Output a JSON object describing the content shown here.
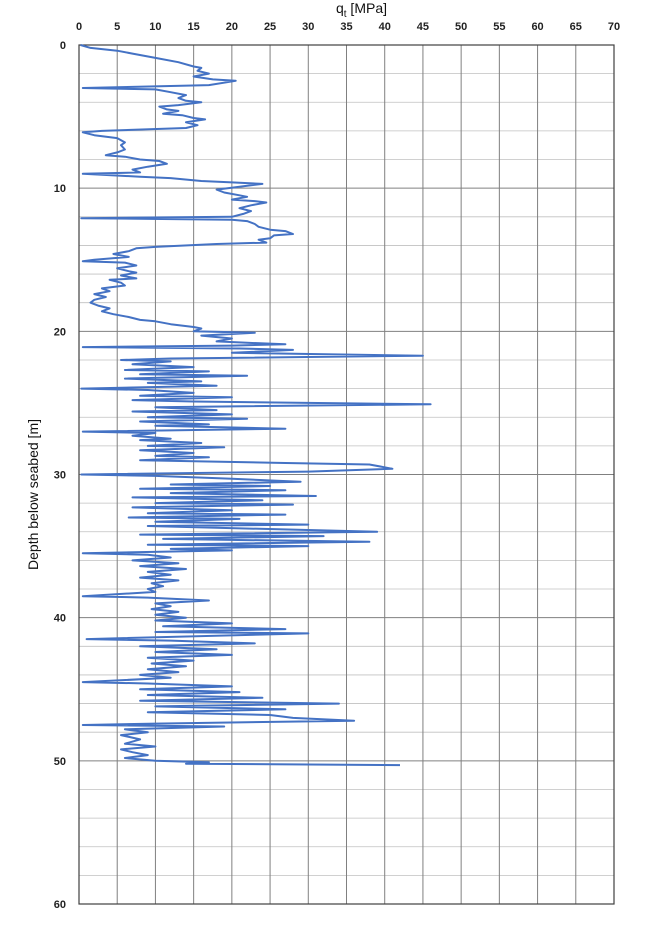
{
  "chart_data": {
    "type": "line",
    "xlabel_main": "q",
    "xlabel_sub": "t",
    "xlabel_unit": " [MPa]",
    "ylabel": "Depth below seabed [m]",
    "xlim": [
      0,
      70
    ],
    "ylim": [
      0,
      60
    ],
    "x_ticks": [
      "0",
      "5",
      "10",
      "15",
      "20",
      "25",
      "30",
      "35",
      "40",
      "45",
      "50",
      "55",
      "60",
      "65",
      "70"
    ],
    "y_ticks": [
      "0",
      "10",
      "20",
      "30",
      "40",
      "50",
      "60"
    ],
    "x_axis_position": "top",
    "y_axis_inverted": true,
    "grid": true,
    "line_color": "#4472c4",
    "series": [
      {
        "points": [
          [
            0.2,
            0.0
          ],
          [
            1.5,
            0.2
          ],
          [
            5,
            0.4
          ],
          [
            7,
            0.6
          ],
          [
            10,
            0.9
          ],
          [
            13,
            1.2
          ],
          [
            15,
            1.5
          ],
          [
            16,
            1.6
          ],
          [
            15.5,
            1.8
          ],
          [
            17,
            2.0
          ],
          [
            15,
            2.2
          ],
          [
            17.5,
            2.4
          ],
          [
            20.5,
            2.5
          ],
          [
            17,
            2.8
          ],
          [
            0.5,
            3.0
          ],
          [
            10,
            3.1
          ],
          [
            12,
            3.3
          ],
          [
            14,
            3.5
          ],
          [
            13,
            3.7
          ],
          [
            14,
            3.9
          ],
          [
            16,
            4.0
          ],
          [
            13,
            4.2
          ],
          [
            10.5,
            4.3
          ],
          [
            11.5,
            4.5
          ],
          [
            13,
            4.6
          ],
          [
            11,
            4.8
          ],
          [
            13.5,
            4.9
          ],
          [
            15,
            5.1
          ],
          [
            16.5,
            5.2
          ],
          [
            14,
            5.4
          ],
          [
            15.5,
            5.6
          ],
          [
            14,
            5.8
          ],
          [
            3,
            6.0
          ],
          [
            0.5,
            6.1
          ],
          [
            2,
            6.3
          ],
          [
            5,
            6.5
          ],
          [
            6,
            6.8
          ],
          [
            5.5,
            7.0
          ],
          [
            6,
            7.3
          ],
          [
            5,
            7.5
          ],
          [
            3.5,
            7.7
          ],
          [
            6,
            7.8
          ],
          [
            8,
            8.0
          ],
          [
            10.5,
            8.1
          ],
          [
            11.5,
            8.3
          ],
          [
            9,
            8.5
          ],
          [
            7,
            8.7
          ],
          [
            8,
            8.9
          ],
          [
            0.5,
            9.0
          ],
          [
            8,
            9.2
          ],
          [
            12,
            9.3
          ],
          [
            16,
            9.5
          ],
          [
            20,
            9.6
          ],
          [
            24,
            9.7
          ],
          [
            21,
            9.9
          ],
          [
            18,
            10.1
          ],
          [
            19,
            10.3
          ],
          [
            21,
            10.5
          ],
          [
            22,
            10.6
          ],
          [
            20,
            10.8
          ],
          [
            23,
            10.9
          ],
          [
            24.5,
            11.0
          ],
          [
            22.5,
            11.2
          ],
          [
            21,
            11.4
          ],
          [
            22.5,
            11.6
          ],
          [
            21.5,
            11.8
          ],
          [
            20,
            12.0
          ],
          [
            0.3,
            12.1
          ],
          [
            20,
            12.2
          ],
          [
            22,
            12.3
          ],
          [
            23,
            12.5
          ],
          [
            23.5,
            12.7
          ],
          [
            25,
            12.9
          ],
          [
            27,
            13.0
          ],
          [
            28,
            13.2
          ],
          [
            25.5,
            13.3
          ],
          [
            25,
            13.5
          ],
          [
            23.5,
            13.6
          ],
          [
            24.5,
            13.8
          ],
          [
            18,
            13.9
          ],
          [
            10,
            14.1
          ],
          [
            7.5,
            14.2
          ],
          [
            6.5,
            14.4
          ],
          [
            4.5,
            14.6
          ],
          [
            6.5,
            14.8
          ],
          [
            2,
            15.0
          ],
          [
            0.5,
            15.1
          ],
          [
            6,
            15.2
          ],
          [
            7.5,
            15.4
          ],
          [
            5,
            15.6
          ],
          [
            6.5,
            15.8
          ],
          [
            7.5,
            15.9
          ],
          [
            5.5,
            16.1
          ],
          [
            7.5,
            16.3
          ],
          [
            4,
            16.4
          ],
          [
            5.5,
            16.6
          ],
          [
            6,
            16.8
          ],
          [
            3,
            17.0
          ],
          [
            4,
            17.2
          ],
          [
            2,
            17.4
          ],
          [
            3.5,
            17.6
          ],
          [
            2,
            17.8
          ],
          [
            1.5,
            18.0
          ],
          [
            2.5,
            18.2
          ],
          [
            4,
            18.4
          ],
          [
            3,
            18.6
          ],
          [
            4.5,
            18.8
          ],
          [
            6.5,
            19.0
          ],
          [
            8,
            19.2
          ],
          [
            10,
            19.3
          ],
          [
            12,
            19.5
          ],
          [
            15,
            19.7
          ],
          [
            16,
            19.8
          ],
          [
            15,
            20.0
          ],
          [
            23,
            20.1
          ],
          [
            16,
            20.3
          ],
          [
            20,
            20.5
          ],
          [
            18,
            20.7
          ],
          [
            22,
            20.8
          ],
          [
            27,
            20.9
          ],
          [
            20,
            21.0
          ],
          [
            0.5,
            21.1
          ],
          [
            21,
            21.2
          ],
          [
            28,
            21.3
          ],
          [
            20,
            21.5
          ],
          [
            45,
            21.7
          ],
          [
            12,
            21.9
          ],
          [
            5.5,
            22.0
          ],
          [
            12,
            22.1
          ],
          [
            7,
            22.3
          ],
          [
            15,
            22.5
          ],
          [
            6,
            22.7
          ],
          [
            17,
            22.8
          ],
          [
            8,
            23.0
          ],
          [
            22,
            23.1
          ],
          [
            6,
            23.3
          ],
          [
            16,
            23.5
          ],
          [
            9,
            23.6
          ],
          [
            18,
            23.8
          ],
          [
            0.3,
            24.0
          ],
          [
            9,
            24.1
          ],
          [
            15,
            24.3
          ],
          [
            8,
            24.5
          ],
          [
            20,
            24.6
          ],
          [
            7,
            24.8
          ],
          [
            15,
            24.9
          ],
          [
            46,
            25.1
          ],
          [
            10,
            25.3
          ],
          [
            18,
            25.5
          ],
          [
            7,
            25.6
          ],
          [
            20,
            25.8
          ],
          [
            9,
            26.0
          ],
          [
            22,
            26.1
          ],
          [
            8,
            26.3
          ],
          [
            17,
            26.5
          ],
          [
            10,
            26.6
          ],
          [
            27,
            26.8
          ],
          [
            0.5,
            27.0
          ],
          [
            10,
            27.1
          ],
          [
            7,
            27.3
          ],
          [
            12,
            27.5
          ],
          [
            8,
            27.6
          ],
          [
            16,
            27.8
          ],
          [
            9,
            28.0
          ],
          [
            19,
            28.1
          ],
          [
            8,
            28.3
          ],
          [
            15,
            28.5
          ],
          [
            10,
            28.7
          ],
          [
            17,
            28.8
          ],
          [
            8,
            29.0
          ],
          [
            27,
            29.2
          ],
          [
            38,
            29.3
          ],
          [
            40,
            29.5
          ],
          [
            41,
            29.6
          ],
          [
            30,
            29.8
          ],
          [
            0.3,
            30.0
          ],
          [
            10,
            30.1
          ],
          [
            20,
            30.3
          ],
          [
            29,
            30.5
          ],
          [
            12,
            30.7
          ],
          [
            25,
            30.8
          ],
          [
            8,
            31.0
          ],
          [
            27,
            31.1
          ],
          [
            12,
            31.3
          ],
          [
            31,
            31.5
          ],
          [
            7,
            31.6
          ],
          [
            24,
            31.8
          ],
          [
            10,
            32.0
          ],
          [
            28,
            32.1
          ],
          [
            7,
            32.3
          ],
          [
            20,
            32.5
          ],
          [
            9,
            32.7
          ],
          [
            27,
            32.8
          ],
          [
            6.5,
            33.0
          ],
          [
            21,
            33.1
          ],
          [
            10,
            33.3
          ],
          [
            30,
            33.5
          ],
          [
            9,
            33.6
          ],
          [
            39,
            34.0
          ],
          [
            8,
            34.2
          ],
          [
            32,
            34.3
          ],
          [
            11,
            34.5
          ],
          [
            38,
            34.7
          ],
          [
            9,
            34.9
          ],
          [
            30,
            35.0
          ],
          [
            12,
            35.2
          ],
          [
            20,
            35.3
          ],
          [
            0.5,
            35.5
          ],
          [
            9,
            35.6
          ],
          [
            12,
            35.8
          ],
          [
            7,
            36.0
          ],
          [
            13,
            36.2
          ],
          [
            8,
            36.4
          ],
          [
            14,
            36.6
          ],
          [
            9,
            36.8
          ],
          [
            12,
            37.0
          ],
          [
            8,
            37.2
          ],
          [
            13,
            37.4
          ],
          [
            9.5,
            37.6
          ],
          [
            11,
            37.8
          ],
          [
            9,
            38.0
          ],
          [
            10,
            38.2
          ],
          [
            0.5,
            38.5
          ],
          [
            9,
            38.6
          ],
          [
            17,
            38.8
          ],
          [
            10,
            39.0
          ],
          [
            12,
            39.2
          ],
          [
            9.5,
            39.4
          ],
          [
            13,
            39.6
          ],
          [
            10,
            39.8
          ],
          [
            14,
            40.0
          ],
          [
            10,
            40.2
          ],
          [
            20,
            40.4
          ],
          [
            11,
            40.6
          ],
          [
            27,
            40.8
          ],
          [
            10,
            41.0
          ],
          [
            30,
            41.1
          ],
          [
            1,
            41.5
          ],
          [
            12,
            41.6
          ],
          [
            23,
            41.8
          ],
          [
            8,
            42.0
          ],
          [
            18,
            42.2
          ],
          [
            10,
            42.4
          ],
          [
            20,
            42.6
          ],
          [
            9,
            42.8
          ],
          [
            15,
            43.0
          ],
          [
            9.5,
            43.2
          ],
          [
            14,
            43.4
          ],
          [
            9,
            43.6
          ],
          [
            13,
            43.8
          ],
          [
            8,
            44.0
          ],
          [
            12,
            44.2
          ],
          [
            0.5,
            44.5
          ],
          [
            9,
            44.6
          ],
          [
            20,
            44.8
          ],
          [
            8,
            45.0
          ],
          [
            21,
            45.2
          ],
          [
            9,
            45.4
          ],
          [
            24,
            45.6
          ],
          [
            8,
            45.8
          ],
          [
            34,
            46.0
          ],
          [
            10,
            46.2
          ],
          [
            27,
            46.4
          ],
          [
            9,
            46.6
          ],
          [
            25,
            46.8
          ],
          [
            28,
            47.0
          ],
          [
            36,
            47.2
          ],
          [
            10,
            47.4
          ],
          [
            0.5,
            47.5
          ],
          [
            19,
            47.6
          ],
          [
            6,
            47.8
          ],
          [
            9,
            48.0
          ],
          [
            5.5,
            48.2
          ],
          [
            8,
            48.5
          ],
          [
            6,
            48.8
          ],
          [
            10,
            49.0
          ],
          [
            5.5,
            49.2
          ],
          [
            7,
            49.4
          ],
          [
            9,
            49.6
          ],
          [
            6,
            49.8
          ],
          [
            10,
            50.0
          ],
          [
            17,
            50.1
          ],
          [
            14,
            50.2
          ],
          [
            42,
            50.3
          ]
        ]
      }
    ]
  }
}
